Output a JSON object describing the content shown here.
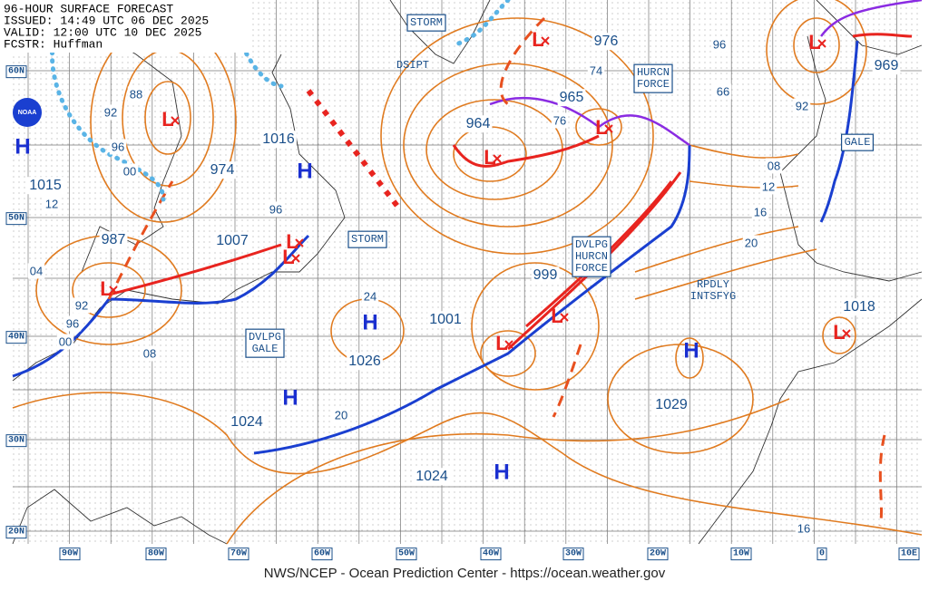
{
  "header": {
    "lines": [
      "96-HOUR SURFACE FORECAST",
      "ISSUED: 14:49 UTC 06 DEC 2025",
      "VALID: 12:00 UTC 10 DEC 2025",
      "FCSTR: Huffman"
    ]
  },
  "logo": "NOAA",
  "lat_labels": [
    "60N",
    "50N",
    "40N",
    "30N",
    "20N"
  ],
  "lon_labels": [
    "90W",
    "80W",
    "70W",
    "60W",
    "50W",
    "40W",
    "30W",
    "20W",
    "10W",
    "0",
    "10E"
  ],
  "pressure_labels": [
    "88",
    "92",
    "96",
    "00",
    "974",
    "1015",
    "12",
    "987",
    "04",
    "92",
    "96",
    "00",
    "08",
    "1016",
    "96",
    "1007",
    "24",
    "1026",
    "1024",
    "20",
    "1001",
    "999",
    "964",
    "965",
    "76",
    "74",
    "976",
    "96",
    "969",
    "66",
    "92",
    "08",
    "12",
    "16",
    "20",
    "1029",
    "1018",
    "1024",
    "16"
  ],
  "highs": [
    "H",
    "H",
    "H",
    "H",
    "H",
    "H"
  ],
  "lows": [
    "L",
    "L",
    "L",
    "L",
    "L",
    "L",
    "L",
    "L",
    "L",
    "L",
    "L"
  ],
  "warnings": [
    {
      "lines": [
        "STORM"
      ]
    },
    {
      "lines": [
        "HURCN",
        "FORCE"
      ]
    },
    {
      "lines": [
        "GALE"
      ]
    },
    {
      "lines": [
        "STORM"
      ]
    },
    {
      "lines": [
        "DVLPG",
        "HURCN",
        "FORCE"
      ]
    },
    {
      "lines": [
        "DVLPG",
        "GALE"
      ]
    }
  ],
  "notes": [
    "DSIPT",
    "RPDLY",
    "INTSFYG"
  ],
  "footer": "NWS/NCEP - Ocean Prediction Center - https://ocean.weather.gov"
}
